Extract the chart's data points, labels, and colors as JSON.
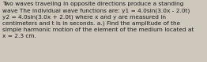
{
  "text": "Two waves traveling in opposite directions produce a standing\nwave The individual wave functions are: y1 = 4.0sin(3.0x - 2.0t)\ny2 = 4.0sin(3.0x + 2.0t) where x and y are measured in\ncentimeters and t is in seconds. a.) Find the amplitude of the\nsimple harmonic motion of the element of the medium located at\nx = 2.3 cm.",
  "background_color": "#cec8bc",
  "text_color": "#1a1a1a",
  "font_size": 5.3,
  "fig_width": 2.62,
  "fig_height": 0.79,
  "linespacing": 1.35
}
